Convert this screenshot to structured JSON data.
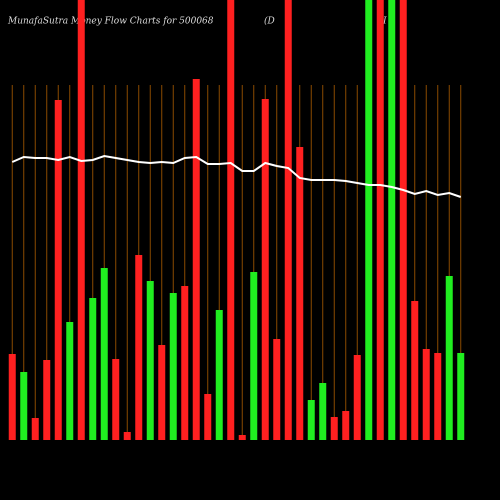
{
  "chart_data": {
    "type": "bar",
    "title": "MunafaSutra  Money Flow  Charts for 500068",
    "subtitle": "(D",
    "annotation": "I",
    "values": [
      86,
      68,
      22,
      80,
      340,
      118,
      440,
      142,
      172,
      81,
      8,
      185,
      159,
      95,
      147,
      154,
      361,
      46,
      130,
      440,
      5,
      168,
      341,
      101,
      440,
      293,
      40,
      57,
      23,
      29,
      85,
      440,
      440,
      440,
      440,
      139,
      91,
      87,
      164,
      87
    ],
    "colors": [
      "#ff2020",
      "#20ee20",
      "#ff2020",
      "#ff2020",
      "#ff2020",
      "#20ee20",
      "#ff2020",
      "#20ee20",
      "#20ee20",
      "#ff2020",
      "#ff2020",
      "#ff2020",
      "#20ee20",
      "#ff2020",
      "#20ee20",
      "#ff2020",
      "#ff2020",
      "#ff2020",
      "#20ee20",
      "#ff2020",
      "#ff2020",
      "#20ee20",
      "#ff2020",
      "#ff2020",
      "#ff2020",
      "#ff2020",
      "#20ee20",
      "#20ee20",
      "#ff2020",
      "#ff2020",
      "#ff2020",
      "#20ee20",
      "#ff2020",
      "#20ee20",
      "#ff2020",
      "#ff2020",
      "#ff2020",
      "#ff2020",
      "#20ee20",
      "#20ee20"
    ],
    "line": {
      "color": "#ffffff",
      "values": [
        278,
        283,
        282,
        282,
        280,
        283,
        279,
        280,
        284,
        282,
        280,
        278,
        277,
        278,
        277,
        282,
        283,
        276,
        276,
        277,
        269,
        269,
        277,
        274,
        272,
        262,
        260,
        260,
        260,
        259,
        257,
        255,
        255,
        253,
        250,
        246,
        249,
        245,
        247,
        243
      ]
    },
    "ylim": [
      0,
      440
    ],
    "grid": true,
    "grid_color": "#8a4a00"
  }
}
